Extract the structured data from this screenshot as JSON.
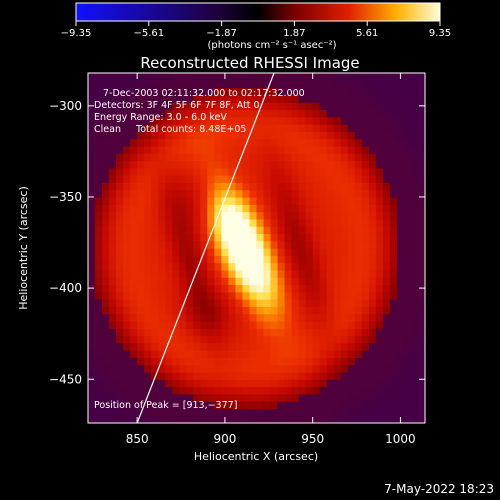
{
  "chart_data": {
    "type": "heatmap",
    "title": "Reconstructed RHESSI Image",
    "xlabel": "Heliocentric X (arcsec)",
    "ylabel": "Heliocentric Y (arcsec)",
    "xlim": [
      822,
      1014
    ],
    "ylim": [
      -474,
      -282
    ],
    "x_ticks": [
      850,
      900,
      950,
      1000
    ],
    "y_ticks": [
      -300,
      -350,
      -400,
      -450
    ],
    "x_tick_labels": [
      "850",
      "900",
      "950",
      "1000"
    ],
    "y_tick_labels": [
      "−300",
      "−350",
      "−400",
      "−450"
    ],
    "colorbar": {
      "range": [
        -9.35,
        9.35
      ],
      "ticks": [
        -9.35,
        -5.61,
        -1.87,
        1.87,
        5.61,
        9.35
      ],
      "tick_labels": [
        "−9.35",
        "−5.61",
        "−1.87",
        "1.87",
        "5.61",
        "9.35"
      ],
      "units": "(photons cm⁻² s⁻¹ asec⁻²)",
      "colormap": "blue-black-red-yellow-white"
    },
    "annotations": [
      "7-Dec-2003 02:11:32.000 to 02:17:32.000",
      "Detectors: 3F 4F 5F 6F 7F 8F, Att 0",
      "Energy Range: 3.0 - 6.0 keV",
      "Clean     Total counts: 8.48E+05"
    ],
    "peak_label": "Position of Peak = [913,−377]",
    "peak": [
      913,
      -377
    ],
    "limb_line": [
      [
        850,
        -474
      ],
      [
        928,
        -282
      ]
    ],
    "grid": false
  },
  "footer": {
    "timestamp": "7-May-2022 18:23"
  }
}
